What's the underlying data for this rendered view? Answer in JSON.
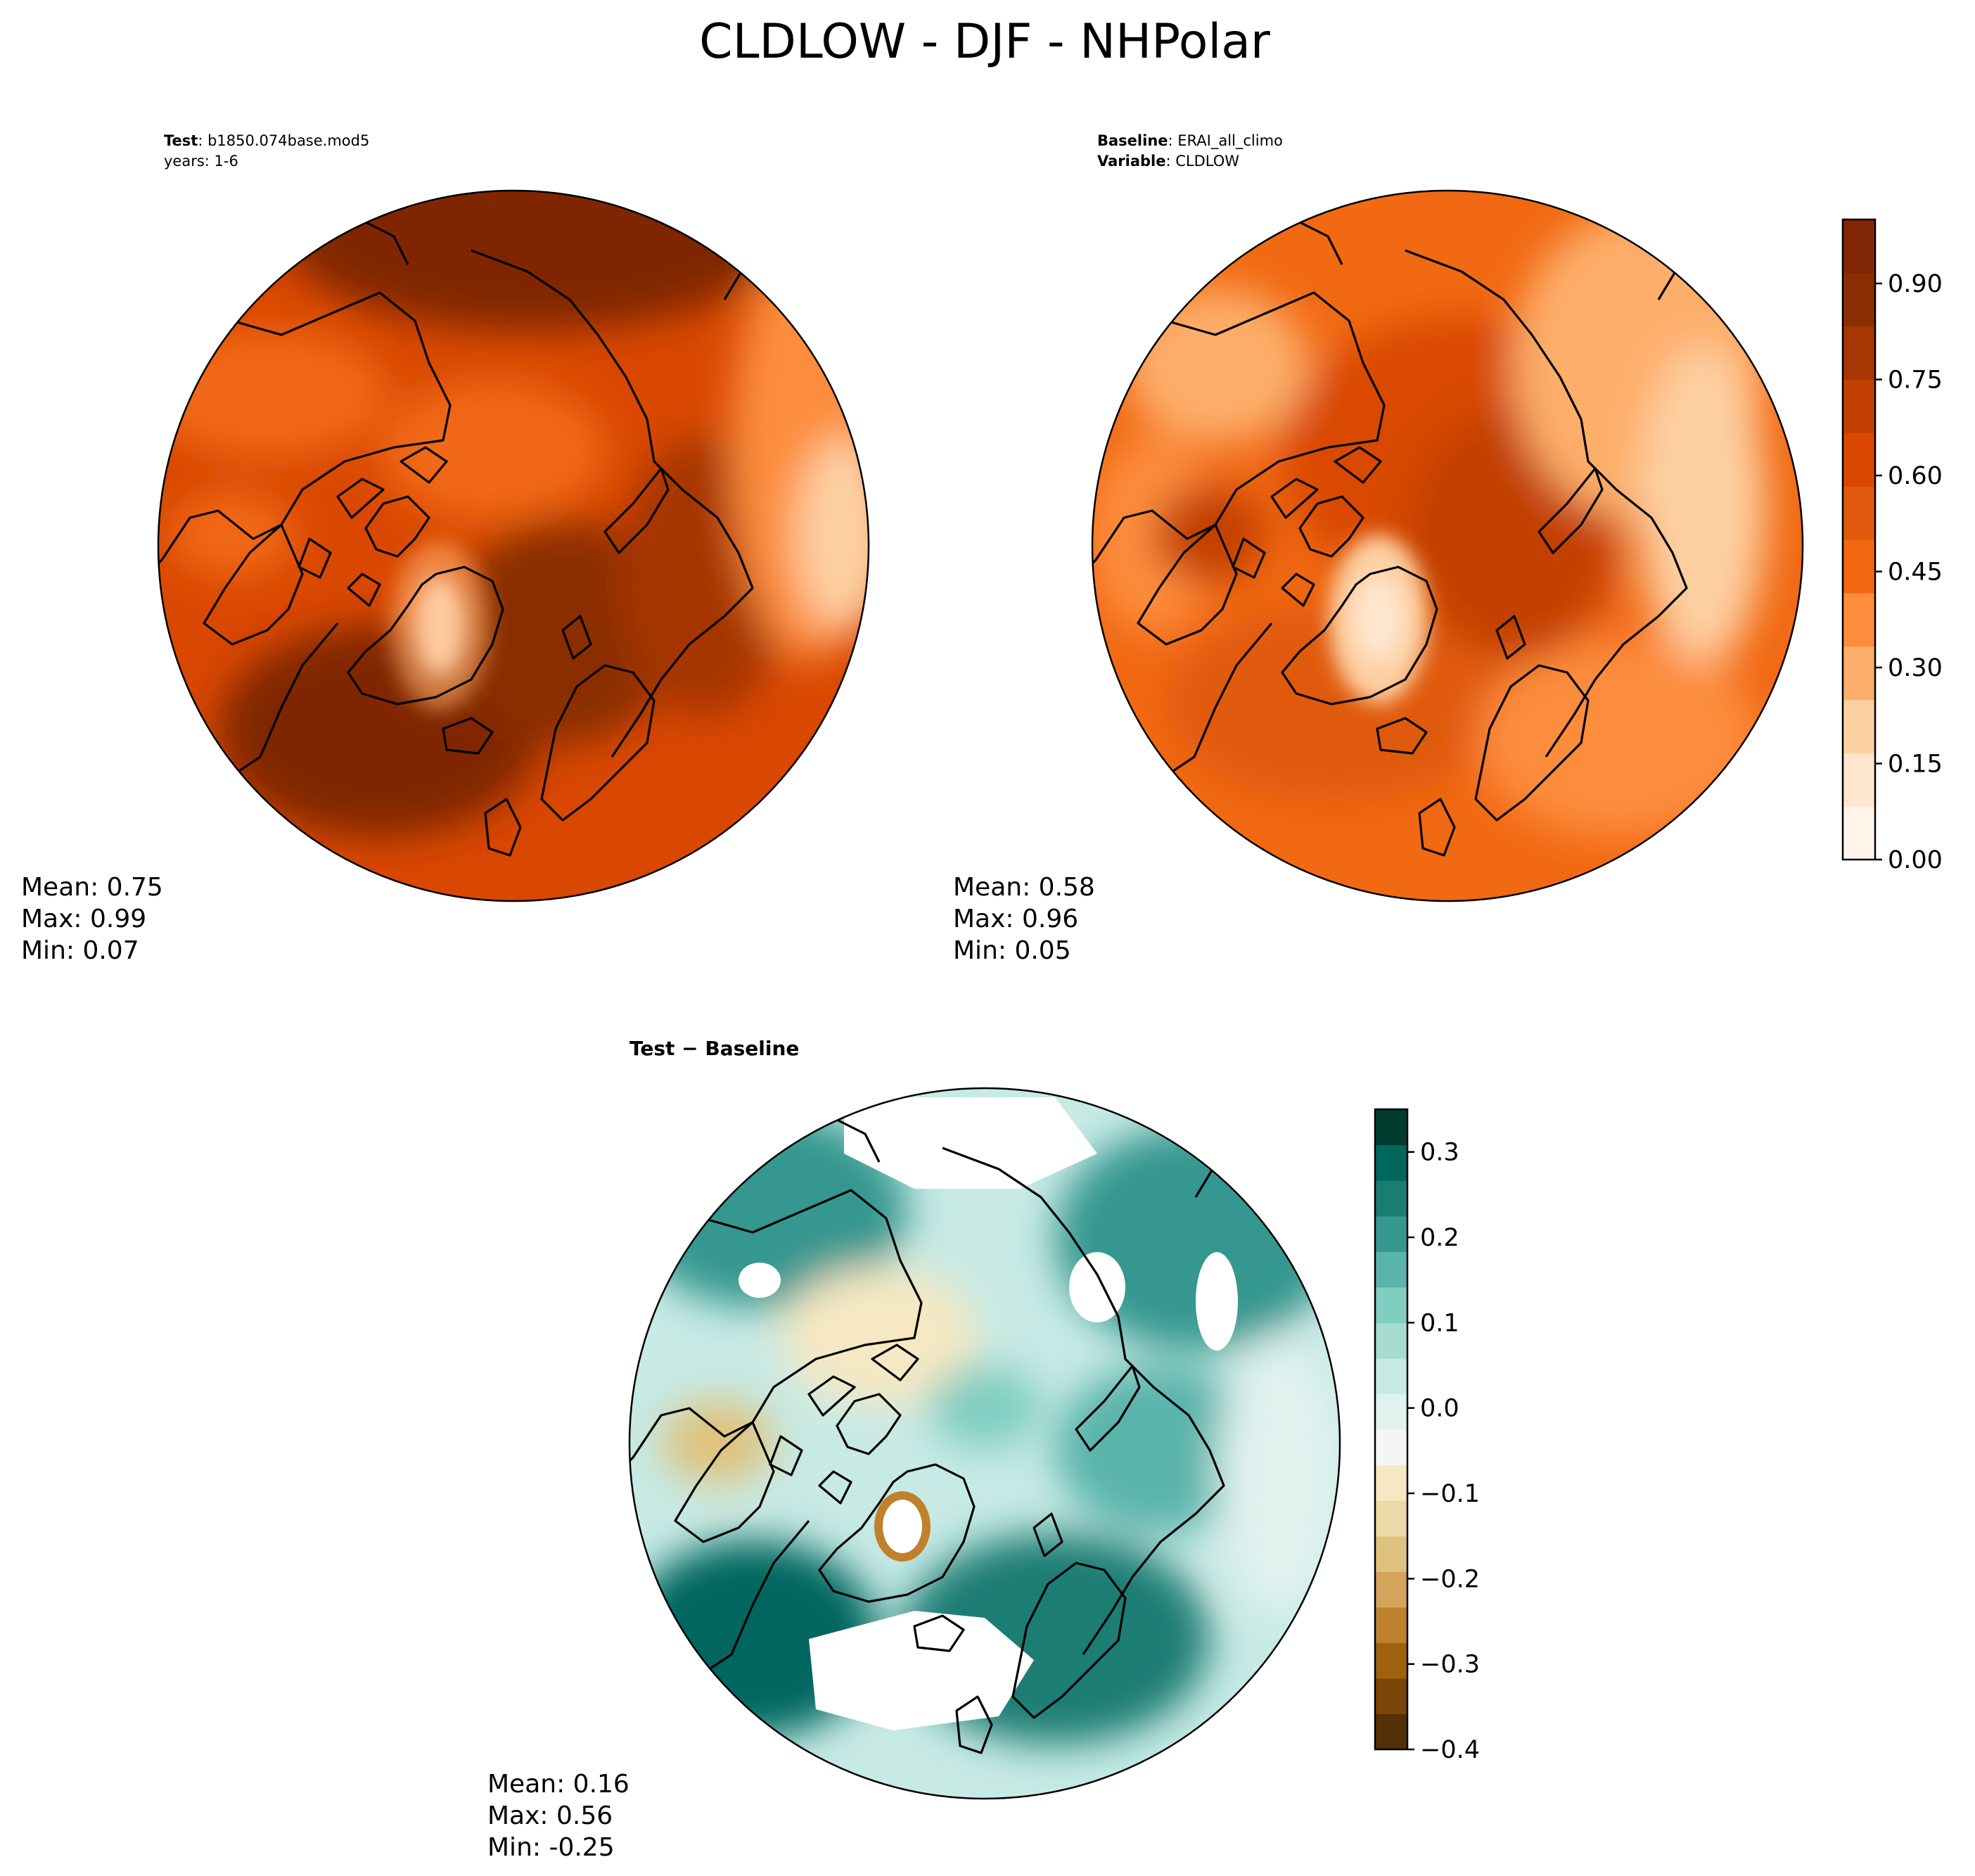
{
  "title": "CLDLOW - DJF - NHPolar",
  "colors": {
    "seq": [
      "#fff5eb",
      "#fee6ce",
      "#fdd0a2",
      "#fdae6b",
      "#fd8d3c",
      "#f16913",
      "#e05a0e",
      "#d94801",
      "#c24102",
      "#a63603",
      "#8a2e04",
      "#7f2704"
    ],
    "div": [
      "#543005",
      "#7a4508",
      "#a0610f",
      "#bf812d",
      "#d3a45c",
      "#dfc27d",
      "#ecd9a8",
      "#f6e8c3",
      "#f5f5f5",
      "#e0f2ee",
      "#c7eae5",
      "#a6dbd1",
      "#80cdc1",
      "#5ab4ac",
      "#35978f",
      "#1a7d73",
      "#01665e",
      "#003c30"
    ]
  },
  "panels": [
    {
      "title_bold": "Test",
      "title_rest": ": b1850.074base.mod5",
      "subtitle": "years: 1-6",
      "stats": {
        "mean": "Mean:  0.75",
        "max": "Max:  0.99",
        "min": "Min:  0.07"
      }
    },
    {
      "title_bold": "Baseline",
      "title_rest": ": ERAI_all_climo",
      "subtitle_bold": "Variable",
      "subtitle_rest": ": CLDLOW",
      "stats": {
        "mean": "Mean:  0.58",
        "max": "Max:  0.96",
        "min": "Min:  0.05"
      }
    },
    {
      "title_bold": "Test − Baseline",
      "stats": {
        "mean": "Mean:  0.16",
        "max": "Max:  0.56",
        "min": "Min: -0.25"
      }
    }
  ],
  "colorbars": [
    {
      "ticks": [
        {
          "label": "0.90",
          "value": 0.9
        },
        {
          "label": "0.75",
          "value": 0.75
        },
        {
          "label": "0.60",
          "value": 0.6
        },
        {
          "label": "0.45",
          "value": 0.45
        },
        {
          "label": "0.30",
          "value": 0.3
        },
        {
          "label": "0.15",
          "value": 0.15
        },
        {
          "label": "0.00",
          "value": 0.0
        }
      ],
      "range": [
        0.0,
        1.0
      ]
    },
    {
      "ticks": [
        {
          "label": "0.3",
          "value": 0.3
        },
        {
          "label": "0.2",
          "value": 0.2
        },
        {
          "label": "0.1",
          "value": 0.1
        },
        {
          "label": "0.0",
          "value": 0.0
        },
        {
          "label": "−0.1",
          "value": -0.1
        },
        {
          "label": "−0.2",
          "value": -0.2
        },
        {
          "label": "−0.3",
          "value": -0.3
        },
        {
          "label": "−0.4",
          "value": -0.4
        }
      ],
      "range": [
        -0.4,
        0.35
      ]
    }
  ]
}
